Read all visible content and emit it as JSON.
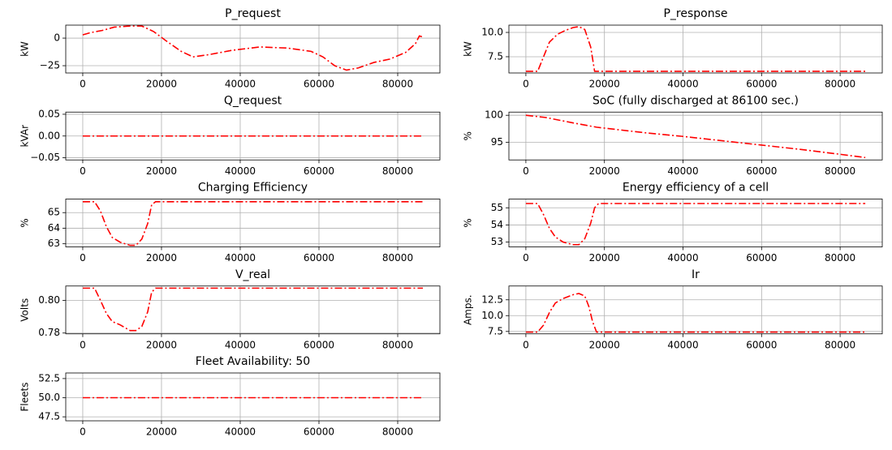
{
  "chart_data": [
    {
      "type": "line",
      "title": "P_request",
      "ylabel": "kW",
      "color": "#ff0000",
      "linestyle": "dashdot",
      "grid": true,
      "x": [
        0,
        2000,
        5000,
        8000,
        12000,
        15000,
        18000,
        21000,
        25000,
        28000,
        32000,
        38000,
        45000,
        52000,
        58000,
        61000,
        64000,
        67000,
        70000,
        74000,
        78000,
        82000,
        84500,
        85500,
        86400
      ],
      "values": [
        3,
        5,
        7,
        10,
        11,
        11,
        6,
        -2,
        -12,
        -17,
        -15,
        -11,
        -8,
        -9,
        -12,
        -17,
        -25,
        -29,
        -27,
        -22,
        -19,
        -13,
        -5,
        2,
        1
      ],
      "xlim": [
        -4320,
        90720
      ],
      "ylim": [
        -31.6,
        11.8
      ],
      "xticks": [
        0,
        20000,
        40000,
        60000,
        80000
      ],
      "yticks": [
        {
          "value": -25,
          "label": "−25"
        },
        0
      ]
    },
    {
      "type": "line",
      "title": "P_response",
      "ylabel": "kW",
      "color": "#ff0000",
      "linestyle": "dashdot",
      "grid": true,
      "x": [
        0,
        3000,
        4500,
        6000,
        8000,
        10000,
        12000,
        13500,
        15000,
        16500,
        17500,
        20000,
        86400
      ],
      "values": [
        6,
        6,
        7.5,
        9,
        9.8,
        10.2,
        10.5,
        10.6,
        10.3,
        8.5,
        6,
        6,
        6
      ],
      "xlim": [
        -4320,
        90720
      ],
      "ylim": [
        5.83,
        10.75
      ],
      "xticks": [
        0,
        20000,
        40000,
        60000,
        80000
      ],
      "yticks": [
        7.5,
        {
          "value": 10,
          "label": "10.0"
        }
      ]
    },
    {
      "type": "line",
      "title": "Q_request",
      "ylabel": "kVAr",
      "color": "#ff0000",
      "linestyle": "dashdot",
      "grid": true,
      "x": [
        0,
        86400
      ],
      "values": [
        0,
        0
      ],
      "xlim": [
        -4320,
        90720
      ],
      "ylim": [
        -0.055,
        0.055
      ],
      "xticks": [
        0,
        20000,
        40000,
        60000,
        80000
      ],
      "yticks": [
        {
          "value": -0.05,
          "label": "−0.05"
        },
        {
          "value": 0,
          "label": "0.00"
        },
        {
          "value": 0.05,
          "label": "0.05"
        }
      ]
    },
    {
      "type": "line",
      "title": "SoC (fully discharged at 86100 sec.)",
      "ylabel": "%",
      "color": "#ff0000",
      "linestyle": "dashdot",
      "grid": true,
      "x": [
        0,
        5000,
        12000,
        18000,
        30000,
        40000,
        50000,
        60000,
        70000,
        80000,
        86400
      ],
      "values": [
        100,
        99.6,
        98.6,
        97.8,
        96.8,
        96.1,
        95.3,
        94.5,
        93.7,
        92.8,
        92.2
      ],
      "xlim": [
        -4320,
        90720
      ],
      "ylim": [
        91.76,
        100.59
      ],
      "xticks": [
        0,
        20000,
        40000,
        60000,
        80000
      ],
      "yticks": [
        95,
        100
      ]
    },
    {
      "type": "line",
      "title": "Charging Efficiency",
      "ylabel": "%",
      "color": "#ff0000",
      "linestyle": "dashdot",
      "grid": true,
      "x": [
        0,
        3000,
        4500,
        6000,
        7500,
        9500,
        12000,
        13500,
        15000,
        16500,
        17500,
        18500,
        86400
      ],
      "values": [
        65.7,
        65.7,
        65.1,
        64.1,
        63.4,
        63.1,
        62.9,
        62.9,
        63.3,
        64.3,
        65.5,
        65.7,
        65.7
      ],
      "xlim": [
        -4320,
        90720
      ],
      "ylim": [
        62.8,
        65.87
      ],
      "xticks": [
        0,
        20000,
        40000,
        60000,
        80000
      ],
      "yticks": [
        63,
        64,
        65
      ]
    },
    {
      "type": "line",
      "title": "Energy efficiency of a cell",
      "ylabel": "%",
      "color": "#ff0000",
      "linestyle": "dashdot",
      "grid": true,
      "x": [
        0,
        3000,
        4500,
        6000,
        7500,
        9500,
        12000,
        13500,
        15000,
        16500,
        17500,
        18500,
        86400
      ],
      "values": [
        55.25,
        55.25,
        54.6,
        53.8,
        53.3,
        53.0,
        52.85,
        52.85,
        53.2,
        54.1,
        55.0,
        55.25,
        55.25
      ],
      "xlim": [
        -4320,
        90720
      ],
      "ylim": [
        52.72,
        55.51
      ],
      "xticks": [
        0,
        20000,
        40000,
        60000,
        80000
      ],
      "yticks": [
        53,
        54,
        55
      ]
    },
    {
      "type": "line",
      "title": "V_real",
      "ylabel": "Volts",
      "color": "#ff0000",
      "linestyle": "dashdot",
      "grid": true,
      "x": [
        0,
        3000,
        4500,
        6000,
        7500,
        9500,
        12000,
        13500,
        15000,
        16500,
        17500,
        18500,
        86400
      ],
      "values": [
        0.8075,
        0.8075,
        0.8,
        0.792,
        0.787,
        0.785,
        0.7815,
        0.7815,
        0.784,
        0.793,
        0.805,
        0.8075,
        0.8075
      ],
      "xlim": [
        -4320,
        90720
      ],
      "ylim": [
        0.7795,
        0.8088
      ],
      "xticks": [
        0,
        20000,
        40000,
        60000,
        80000
      ],
      "yticks": [
        0.78,
        {
          "value": 0.8,
          "label": "0.80"
        }
      ]
    },
    {
      "type": "line",
      "title": "Ir",
      "ylabel": "Amps.",
      "color": "#ff0000",
      "linestyle": "dashdot",
      "grid": true,
      "x": [
        0,
        3000,
        4500,
        6000,
        7500,
        9500,
        12000,
        13500,
        15000,
        16000,
        17000,
        18000,
        86400
      ],
      "values": [
        7.4,
        7.4,
        8.5,
        10.5,
        12,
        12.7,
        13.3,
        13.5,
        13.1,
        11.5,
        9,
        7.4,
        7.4
      ],
      "xlim": [
        -4320,
        90720
      ],
      "ylim": [
        7.12,
        14.68
      ],
      "xticks": [
        0,
        20000,
        40000,
        60000,
        80000
      ],
      "yticks": [
        7.5,
        {
          "value": 10,
          "label": "10.0"
        },
        12.5
      ]
    },
    {
      "type": "line",
      "title": "Fleet Availability: 50",
      "ylabel": "Fleets",
      "color": "#ff0000",
      "linestyle": "dashdot",
      "grid": true,
      "x": [
        0,
        86400
      ],
      "values": [
        50,
        50
      ],
      "xlim": [
        -4320,
        90720
      ],
      "ylim": [
        46.98,
        53.23
      ],
      "xticks": [
        0,
        20000,
        40000,
        60000,
        80000
      ],
      "yticks": [
        47.5,
        {
          "value": 50,
          "label": "50.0"
        },
        52.5
      ]
    }
  ]
}
